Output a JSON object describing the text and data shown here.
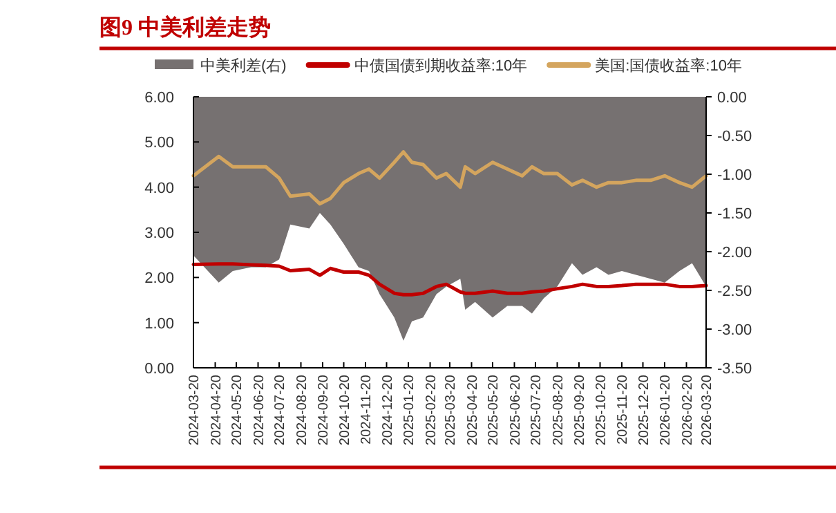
{
  "chart_data": {
    "type": "line",
    "title": "图9 中美利差走势",
    "x": [
      "2024-03-20",
      "2024-04-25",
      "2024-05-15",
      "2024-06-10",
      "2024-07-01",
      "2024-07-20",
      "2024-08-05",
      "2024-09-01",
      "2024-09-16",
      "2024-10-01",
      "2024-10-20",
      "2024-11-10",
      "2024-11-25",
      "2024-12-10",
      "2024-12-31",
      "2025-01-13",
      "2025-01-25",
      "2025-02-10",
      "2025-03-01",
      "2025-03-15",
      "2025-04-04",
      "2025-04-11",
      "2025-04-25",
      "2025-05-20",
      "2025-06-10",
      "2025-07-01",
      "2025-07-15",
      "2025-08-01",
      "2025-08-20",
      "2025-09-10",
      "2025-09-25",
      "2025-10-15",
      "2025-11-01",
      "2025-11-20",
      "2025-12-10",
      "2025-12-31",
      "2026-01-20",
      "2026-02-10",
      "2026-02-28",
      "2026-03-20"
    ],
    "series": [
      {
        "name": "中美利差(右)",
        "type": "area",
        "axis": "y2",
        "color": "#767171",
        "values": [
          -2.05,
          -2.4,
          -2.25,
          -2.2,
          -2.2,
          -2.1,
          -1.65,
          -1.7,
          -1.5,
          -1.65,
          -1.9,
          -2.2,
          -2.25,
          -2.55,
          -2.85,
          -3.15,
          -2.9,
          -2.85,
          -2.55,
          -2.45,
          -2.35,
          -2.75,
          -2.65,
          -2.85,
          -2.7,
          -2.7,
          -2.8,
          -2.6,
          -2.45,
          -2.15,
          -2.3,
          -2.2,
          -2.3,
          -2.25,
          -2.3,
          -2.35,
          -2.4,
          -2.25,
          -2.15,
          -2.45
        ]
      },
      {
        "name": "中债国债到期收益率:10年",
        "type": "line",
        "color": "#c00000",
        "values": [
          2.29,
          2.3,
          2.3,
          2.28,
          2.27,
          2.25,
          2.15,
          2.18,
          2.05,
          2.2,
          2.12,
          2.12,
          2.05,
          1.85,
          1.65,
          1.62,
          1.62,
          1.65,
          1.8,
          1.85,
          1.68,
          1.65,
          1.65,
          1.7,
          1.65,
          1.65,
          1.68,
          1.7,
          1.75,
          1.8,
          1.85,
          1.8,
          1.8,
          1.82,
          1.85,
          1.85,
          1.85,
          1.8,
          1.8,
          1.82
        ]
      },
      {
        "name": "美国:国债收益率:10年",
        "type": "line",
        "color": "#d4a55e",
        "values": [
          4.25,
          4.68,
          4.45,
          4.45,
          4.45,
          4.2,
          3.8,
          3.85,
          3.63,
          3.75,
          4.1,
          4.3,
          4.4,
          4.2,
          4.55,
          4.78,
          4.55,
          4.5,
          4.2,
          4.3,
          4.0,
          4.45,
          4.3,
          4.55,
          4.4,
          4.25,
          4.45,
          4.3,
          4.3,
          4.05,
          4.15,
          4.0,
          4.1,
          4.1,
          4.15,
          4.15,
          4.25,
          4.1,
          4.0,
          4.25
        ]
      }
    ],
    "xlim": [
      "2024-03-20",
      "2026-03-20"
    ],
    "xticks": [
      "2024-03-20",
      "2024-04-20",
      "2024-05-20",
      "2024-06-20",
      "2024-07-20",
      "2024-08-20",
      "2024-09-20",
      "2024-10-20",
      "2024-11-20",
      "2024-12-20",
      "2025-01-20",
      "2025-02-20",
      "2025-03-20",
      "2025-04-20",
      "2025-05-20",
      "2025-06-20",
      "2025-07-20",
      "2025-08-20",
      "2025-09-20",
      "2025-10-20",
      "2025-11-20",
      "2025-12-20",
      "2026-01-20",
      "2026-02-20",
      "2026-03-20"
    ],
    "ylim": [
      0,
      6
    ],
    "yticks": [
      {
        "value": 0,
        "label": "0.00"
      },
      {
        "value": 1,
        "label": "1.00"
      },
      {
        "value": 2,
        "label": "2.00"
      },
      {
        "value": 3,
        "label": "3.00"
      },
      {
        "value": 4,
        "label": "4.00"
      },
      {
        "value": 5,
        "label": "5.00"
      },
      {
        "value": 6,
        "label": "6.00"
      }
    ],
    "y2lim": [
      -3.5,
      0
    ],
    "y2ticks": [
      {
        "value": -3.5,
        "label": "-3.50"
      },
      {
        "value": -3,
        "label": "-3.00"
      },
      {
        "value": -2.5,
        "label": "-2.50"
      },
      {
        "value": -2,
        "label": "-2.00"
      },
      {
        "value": -1.5,
        "label": "-1.50"
      },
      {
        "value": -1,
        "label": "-1.00"
      },
      {
        "value": -0.5,
        "label": "-0.50"
      },
      {
        "value": 0,
        "label": "0.00"
      }
    ],
    "legend": "top",
    "grid": false
  }
}
